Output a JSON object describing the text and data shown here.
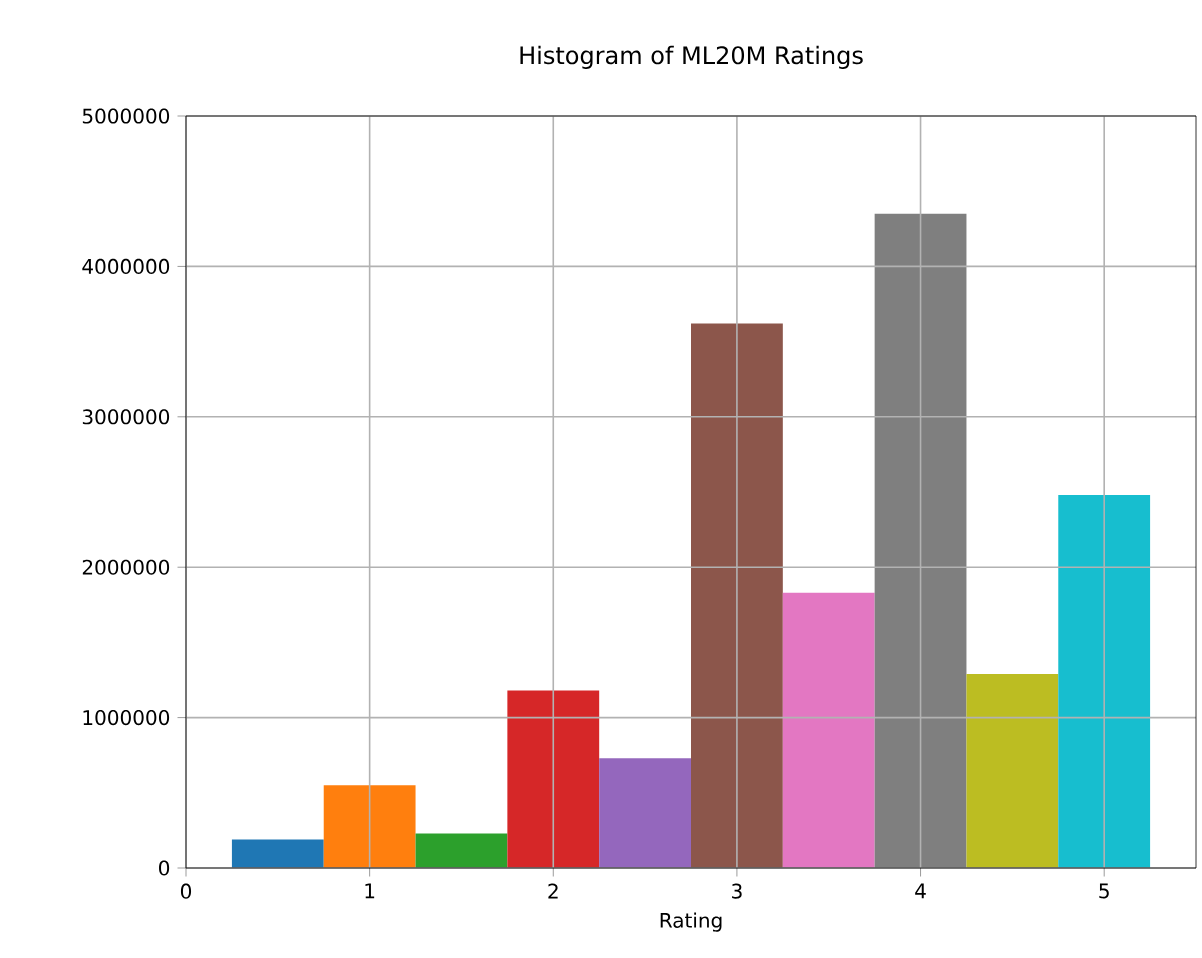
{
  "chart_data": {
    "type": "histogram",
    "title": "Histogram of ML20M Ratings",
    "xlabel": "Rating",
    "bins": [
      0.25,
      0.75,
      1.25,
      1.75,
      2.25,
      2.75,
      3.25,
      3.75,
      4.25,
      4.75,
      5.25
    ],
    "values": [
      190000,
      550000,
      230000,
      1180000,
      730000,
      3620000,
      1830000,
      4350000,
      1290000,
      2480000
    ],
    "colors": [
      "#1f77b4",
      "#ff7f0e",
      "#2ca02c",
      "#d62728",
      "#9467bd",
      "#8c564b",
      "#e377c2",
      "#7f7f7f",
      "#bcbd22",
      "#17becf"
    ],
    "xlim": [
      0,
      5.5
    ],
    "ylim": [
      0,
      5000000
    ],
    "xticks": [
      0,
      1,
      2,
      3,
      4,
      5
    ],
    "yticks": [
      0,
      1000000,
      2000000,
      3000000,
      4000000,
      5000000
    ],
    "grid": true
  }
}
